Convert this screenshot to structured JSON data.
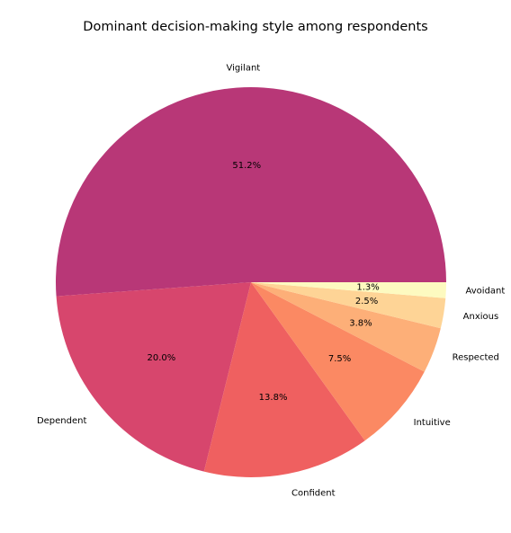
{
  "chart_data": {
    "type": "pie",
    "title": "Dominant decision-making style among respondents",
    "slices": [
      {
        "label": "Vigilant",
        "value": 51.2,
        "pct_label": "51.2%",
        "color": "#b83777"
      },
      {
        "label": "Dependent",
        "value": 20.0,
        "pct_label": "20.0%",
        "color": "#d7466d"
      },
      {
        "label": "Confident",
        "value": 13.8,
        "pct_label": "13.8%",
        "color": "#ef6060"
      },
      {
        "label": "Intuitive",
        "value": 7.5,
        "pct_label": "7.5%",
        "color": "#fb8963"
      },
      {
        "label": "Respected",
        "value": 3.8,
        "pct_label": "3.8%",
        "color": "#fdaf78"
      },
      {
        "label": "Anxious",
        "value": 2.5,
        "pct_label": "2.5%",
        "color": "#fed496"
      },
      {
        "label": "Avoidant",
        "value": 1.3,
        "pct_label": "1.3%",
        "color": "#fdfac0"
      }
    ],
    "start_angle_deg": 0,
    "direction": "counterclockwise",
    "legend": "none"
  }
}
